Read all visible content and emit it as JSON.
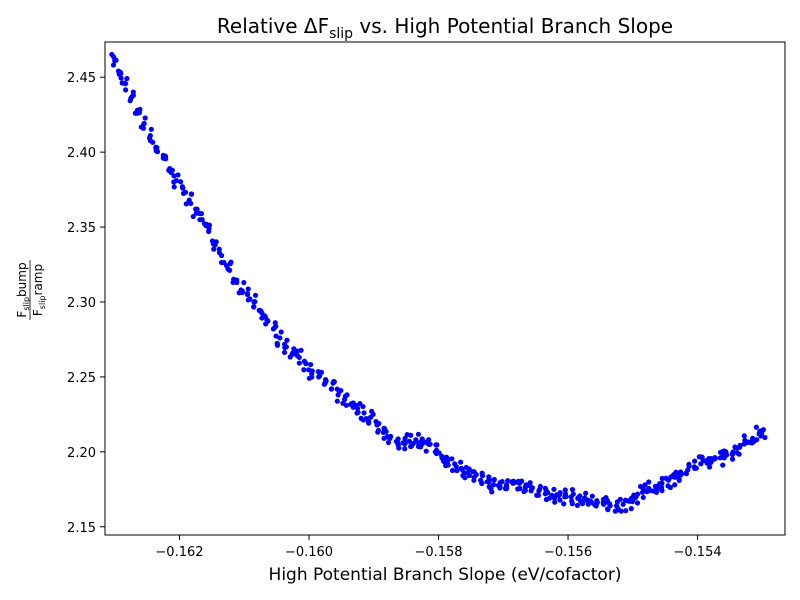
{
  "chart_data": {
    "type": "scatter",
    "title": {
      "prefix": "Relative ΔF",
      "subscript": "slip",
      "suffix": " vs. High Potential Branch Slope"
    },
    "xlabel": "High Potential Branch Slope (eV/cofactor)",
    "ylabel": {
      "numerator_base": "F",
      "numerator_sub": "slip",
      "numerator_rest": "bump",
      "denominator_base": "F",
      "denominator_sub": "slip",
      "denominator_rest": "ramp"
    },
    "xlim": [
      -0.16315,
      -0.15265
    ],
    "ylim": [
      2.1445,
      2.4735
    ],
    "xticks": [
      -0.162,
      -0.16,
      -0.158,
      -0.156,
      -0.154
    ],
    "xtick_labels": [
      "−0.162",
      "−0.160",
      "−0.158",
      "−0.156",
      "−0.154"
    ],
    "yticks": [
      2.15,
      2.2,
      2.25,
      2.3,
      2.35,
      2.4,
      2.45
    ],
    "ytick_labels": [
      "2.15",
      "2.20",
      "2.25",
      "2.30",
      "2.35",
      "2.40",
      "2.45"
    ],
    "grid": false,
    "marker_color": "#0000ff",
    "series": [
      {
        "name": "relative ΔFslip",
        "x": [
          -0.163,
          -0.16293,
          -0.16285,
          -0.16275,
          -0.16265,
          -0.16255,
          -0.16245,
          -0.16235,
          -0.16225,
          -0.16215,
          -0.16205,
          -0.16195,
          -0.16185,
          -0.16175,
          -0.16165,
          -0.16155,
          -0.16145,
          -0.16135,
          -0.16125,
          -0.16115,
          -0.16105,
          -0.16095,
          -0.16085,
          -0.16075,
          -0.16065,
          -0.16055,
          -0.16045,
          -0.16035,
          -0.16025,
          -0.16015,
          -0.16005,
          -0.15995,
          -0.15985,
          -0.15975,
          -0.15965,
          -0.15955,
          -0.15945,
          -0.15935,
          -0.15925,
          -0.15915,
          -0.15905,
          -0.15895,
          -0.15885,
          -0.15875,
          -0.15865,
          -0.15855,
          -0.15845,
          -0.15835,
          -0.15825,
          -0.15815,
          -0.15805,
          -0.15795,
          -0.15785,
          -0.15775,
          -0.15765,
          -0.15755,
          -0.15745,
          -0.15735,
          -0.15725,
          -0.15715,
          -0.15705,
          -0.15695,
          -0.15685,
          -0.15675,
          -0.15665,
          -0.15655,
          -0.15645,
          -0.15635,
          -0.15625,
          -0.15615,
          -0.15605,
          -0.15595,
          -0.15585,
          -0.15575,
          -0.15565,
          -0.15555,
          -0.15545,
          -0.15535,
          -0.15525,
          -0.15515,
          -0.15505,
          -0.15495,
          -0.15485,
          -0.15475,
          -0.15465,
          -0.15455,
          -0.15445,
          -0.15435,
          -0.15425,
          -0.15415,
          -0.15405,
          -0.15395,
          -0.15385,
          -0.15375,
          -0.15365,
          -0.15355,
          -0.15345,
          -0.15335,
          -0.15325,
          -0.15315,
          -0.15305,
          -0.153
        ],
        "y": [
          2.461,
          2.452,
          2.446,
          2.436,
          2.428,
          2.419,
          2.411,
          2.403,
          2.396,
          2.389,
          2.381,
          2.376,
          2.368,
          2.362,
          2.355,
          2.347,
          2.338,
          2.331,
          2.322,
          2.314,
          2.308,
          2.305,
          2.3,
          2.294,
          2.288,
          2.282,
          2.276,
          2.27,
          2.266,
          2.263,
          2.259,
          2.254,
          2.25,
          2.246,
          2.242,
          2.238,
          2.235,
          2.232,
          2.229,
          2.226,
          2.223,
          2.218,
          2.213,
          2.209,
          2.207,
          2.206,
          2.207,
          2.208,
          2.208,
          2.205,
          2.2,
          2.197,
          2.195,
          2.192,
          2.189,
          2.186,
          2.183,
          2.181,
          2.18,
          2.178,
          2.177,
          2.178,
          2.179,
          2.179,
          2.178,
          2.176,
          2.174,
          2.172,
          2.171,
          2.171,
          2.17,
          2.17,
          2.169,
          2.168,
          2.167,
          2.166,
          2.165,
          2.164,
          2.164,
          2.165,
          2.167,
          2.17,
          2.173,
          2.175,
          2.177,
          2.179,
          2.181,
          2.183,
          2.185,
          2.188,
          2.19,
          2.192,
          2.193,
          2.195,
          2.196,
          2.198,
          2.2,
          2.203,
          2.206,
          2.209,
          2.212,
          2.214
        ]
      }
    ]
  }
}
